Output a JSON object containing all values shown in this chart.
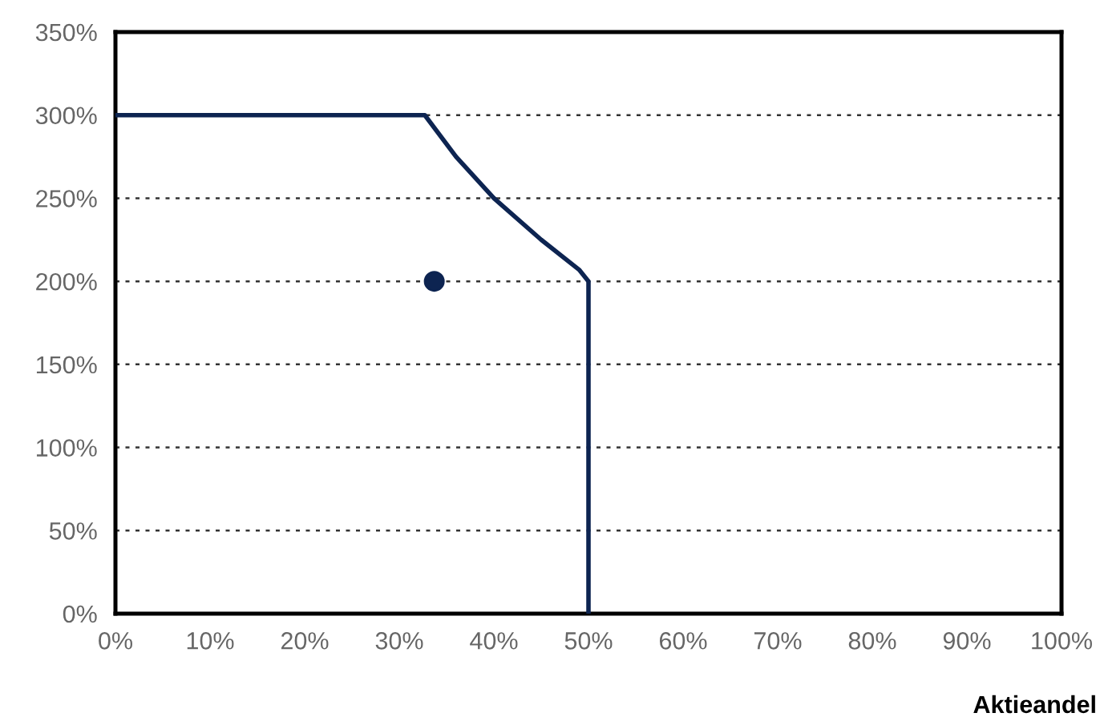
{
  "chart_data": {
    "type": "line",
    "xlabel": "Aktieandel",
    "series": [
      {
        "color": "#0d2451",
        "x": [
          0,
          32.7,
          36,
          40,
          45,
          49,
          50,
          50
        ],
        "values": [
          300,
          300,
          275,
          250,
          225,
          207,
          200,
          0
        ]
      },
      {
        "type": "scatter",
        "marker": "circle",
        "color": "#0d2451",
        "x": [
          33.7
        ],
        "values": [
          200
        ]
      }
    ],
    "xlim": [
      0,
      100
    ],
    "ylim": [
      0,
      350
    ],
    "xticks": [
      {
        "value": 0,
        "label": "0%"
      },
      {
        "value": 10,
        "label": "10%"
      },
      {
        "value": 20,
        "label": "20%"
      },
      {
        "value": 30,
        "label": "30%"
      },
      {
        "value": 40,
        "label": "40%"
      },
      {
        "value": 50,
        "label": "50%"
      },
      {
        "value": 60,
        "label": "60%"
      },
      {
        "value": 70,
        "label": "70%"
      },
      {
        "value": 80,
        "label": "80%"
      },
      {
        "value": 90,
        "label": "90%"
      },
      {
        "value": 100,
        "label": "100%"
      }
    ],
    "yticks": [
      {
        "value": 0,
        "label": "0%"
      },
      {
        "value": 50,
        "label": "50%"
      },
      {
        "value": 100,
        "label": "100%"
      },
      {
        "value": 150,
        "label": "150%"
      },
      {
        "value": 200,
        "label": "200%"
      },
      {
        "value": 250,
        "label": "250%"
      },
      {
        "value": 300,
        "label": "300%"
      },
      {
        "value": 350,
        "label": "350%"
      }
    ],
    "grid": "y",
    "line_style": "solid"
  }
}
